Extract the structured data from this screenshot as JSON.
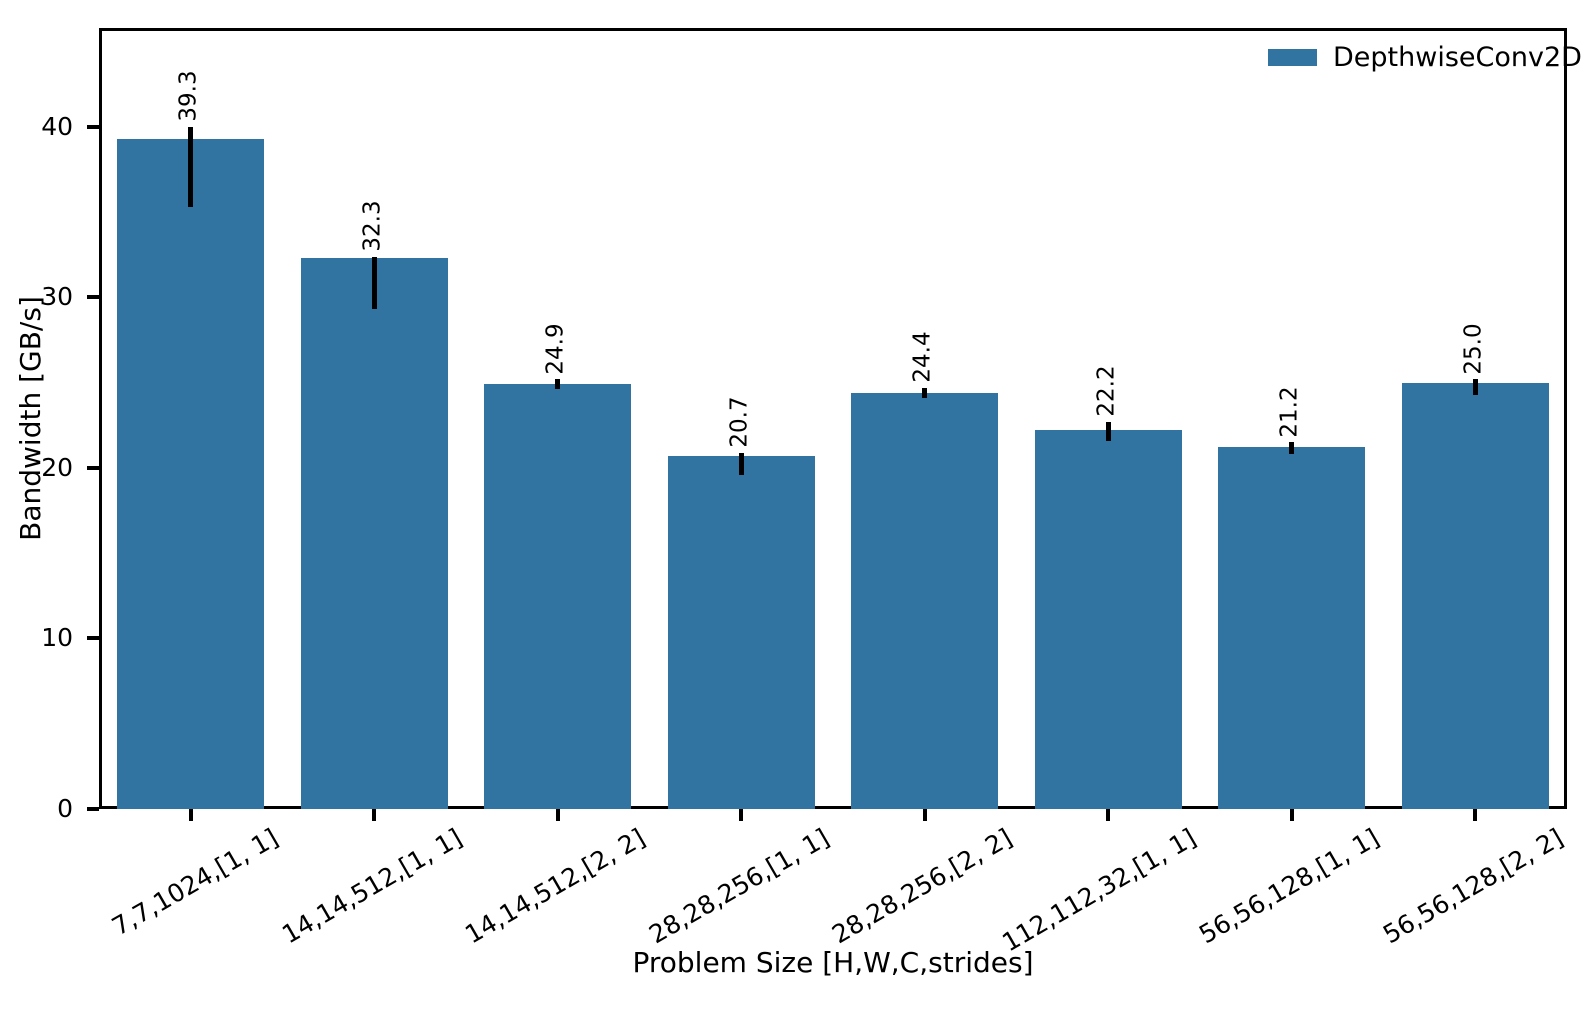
{
  "chart_data": {
    "type": "bar",
    "title": "",
    "xlabel": "Problem Size [H,W,C,strides]",
    "ylabel": "Bandwidth [GB/s]",
    "categories": [
      "7,7,1024,[1, 1]",
      "14,14,512,[1, 1]",
      "14,14,512,[2, 2]",
      "28,28,256,[1, 1]",
      "28,28,256,[2, 2]",
      "112,112,32,[1, 1]",
      "56,56,128,[1, 1]",
      "56,56,128,[2, 2]"
    ],
    "series": [
      {
        "name": "DepthwiseConv2D",
        "values": [
          39.3,
          32.3,
          24.9,
          20.7,
          24.4,
          22.2,
          21.2,
          25.0
        ],
        "error_low": [
          35.3,
          29.3,
          24.6,
          19.6,
          24.1,
          21.6,
          20.8,
          24.3
        ],
        "error_high": [
          40.0,
          32.4,
          25.2,
          20.9,
          24.7,
          22.7,
          21.5,
          25.2
        ]
      }
    ],
    "bar_labels": [
      "39.3",
      "32.3",
      "24.9",
      "20.7",
      "24.4",
      "22.2",
      "21.2",
      "25.0"
    ],
    "ylim": [
      0,
      45.8
    ],
    "yticks": [
      0,
      10,
      20,
      30,
      40
    ],
    "grid": false,
    "legend_position": "upper right",
    "colors": {
      "bar": "#3274a1",
      "error_bar": "#000000",
      "axis": "#000000",
      "background": "#ffffff"
    }
  }
}
